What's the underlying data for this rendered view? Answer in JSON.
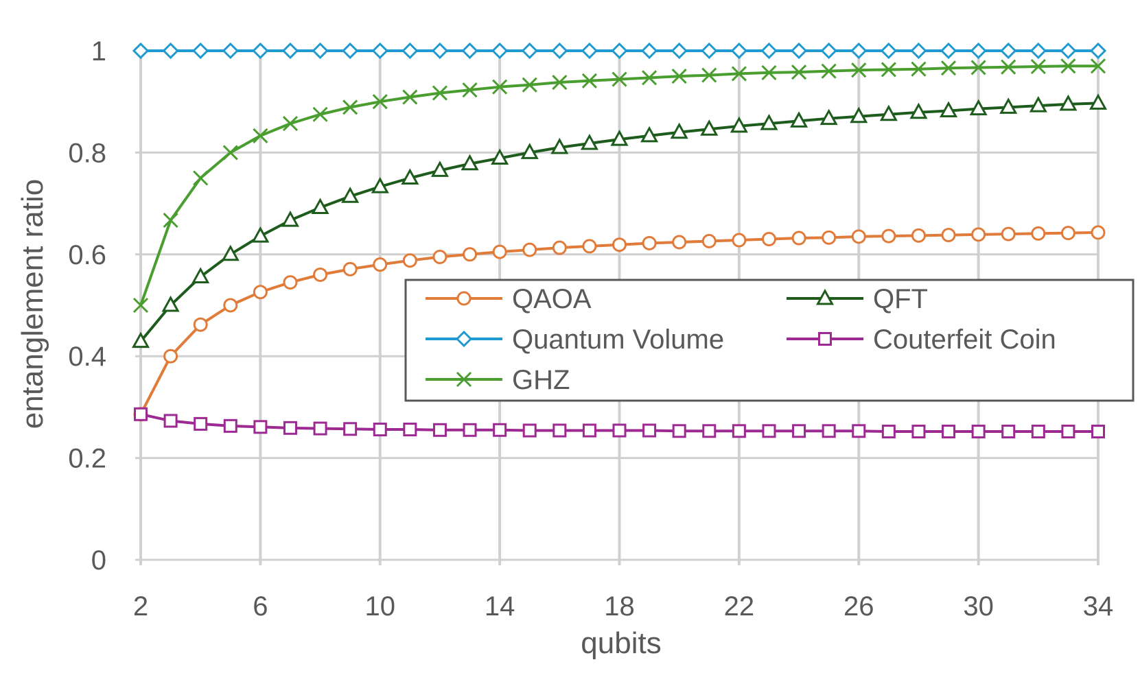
{
  "chart_data": {
    "type": "line",
    "title": "",
    "xlabel": "qubits",
    "ylabel": "entanglement ratio",
    "x": [
      2,
      3,
      4,
      5,
      6,
      7,
      8,
      9,
      10,
      11,
      12,
      13,
      14,
      15,
      16,
      17,
      18,
      19,
      20,
      21,
      22,
      23,
      24,
      25,
      26,
      27,
      28,
      29,
      30,
      31,
      32,
      33,
      34
    ],
    "xlim": [
      2,
      34
    ],
    "ylim": [
      0,
      1
    ],
    "x_ticks": [
      "2",
      "6",
      "10",
      "14",
      "18",
      "22",
      "26",
      "30",
      "34"
    ],
    "y_ticks": [
      "0",
      "0.2",
      "0.4",
      "0.6",
      "0.8",
      "1"
    ],
    "grid": true,
    "legend": "center-right, inside plot",
    "series": [
      {
        "name": "QAOA",
        "color": "#E07B39",
        "marker": "circle",
        "values": [
          0.286,
          0.4,
          0.462,
          0.5,
          0.526,
          0.545,
          0.56,
          0.571,
          0.58,
          0.588,
          0.595,
          0.6,
          0.605,
          0.609,
          0.613,
          0.616,
          0.619,
          0.622,
          0.624,
          0.626,
          0.628,
          0.63,
          0.632,
          0.633,
          0.635,
          0.636,
          0.637,
          0.638,
          0.639,
          0.64,
          0.641,
          0.642,
          0.643
        ]
      },
      {
        "name": "QFT",
        "color": "#1E5C1E",
        "marker": "triangle",
        "values": [
          0.429,
          0.5,
          0.556,
          0.6,
          0.636,
          0.667,
          0.692,
          0.714,
          0.733,
          0.75,
          0.765,
          0.778,
          0.789,
          0.8,
          0.81,
          0.818,
          0.826,
          0.833,
          0.84,
          0.846,
          0.852,
          0.857,
          0.862,
          0.867,
          0.871,
          0.875,
          0.879,
          0.882,
          0.886,
          0.889,
          0.892,
          0.895,
          0.897
        ]
      },
      {
        "name": "Quantum Volume",
        "color": "#1F9AD1",
        "marker": "diamond",
        "values": [
          1,
          1,
          1,
          1,
          1,
          1,
          1,
          1,
          1,
          1,
          1,
          1,
          1,
          1,
          1,
          1,
          1,
          1,
          1,
          1,
          1,
          1,
          1,
          1,
          1,
          1,
          1,
          1,
          1,
          1,
          1,
          1,
          1
        ]
      },
      {
        "name": "Couterfeit Coin",
        "color": "#9C2A92",
        "marker": "square",
        "values": [
          0.286,
          0.273,
          0.267,
          0.263,
          0.261,
          0.259,
          0.258,
          0.257,
          0.256,
          0.256,
          0.255,
          0.255,
          0.255,
          0.254,
          0.254,
          0.254,
          0.254,
          0.254,
          0.253,
          0.253,
          0.253,
          0.253,
          0.253,
          0.253,
          0.253,
          0.252,
          0.252,
          0.252,
          0.252,
          0.252,
          0.252,
          0.252,
          0.252
        ]
      },
      {
        "name": "GHZ",
        "color": "#4A9E2F",
        "marker": "x",
        "values": [
          0.5,
          0.667,
          0.75,
          0.8,
          0.833,
          0.857,
          0.875,
          0.889,
          0.9,
          0.909,
          0.917,
          0.923,
          0.929,
          0.933,
          0.938,
          0.941,
          0.944,
          0.947,
          0.95,
          0.952,
          0.955,
          0.957,
          0.958,
          0.96,
          0.962,
          0.963,
          0.964,
          0.966,
          0.967,
          0.968,
          0.969,
          0.97,
          0.97
        ]
      }
    ]
  }
}
